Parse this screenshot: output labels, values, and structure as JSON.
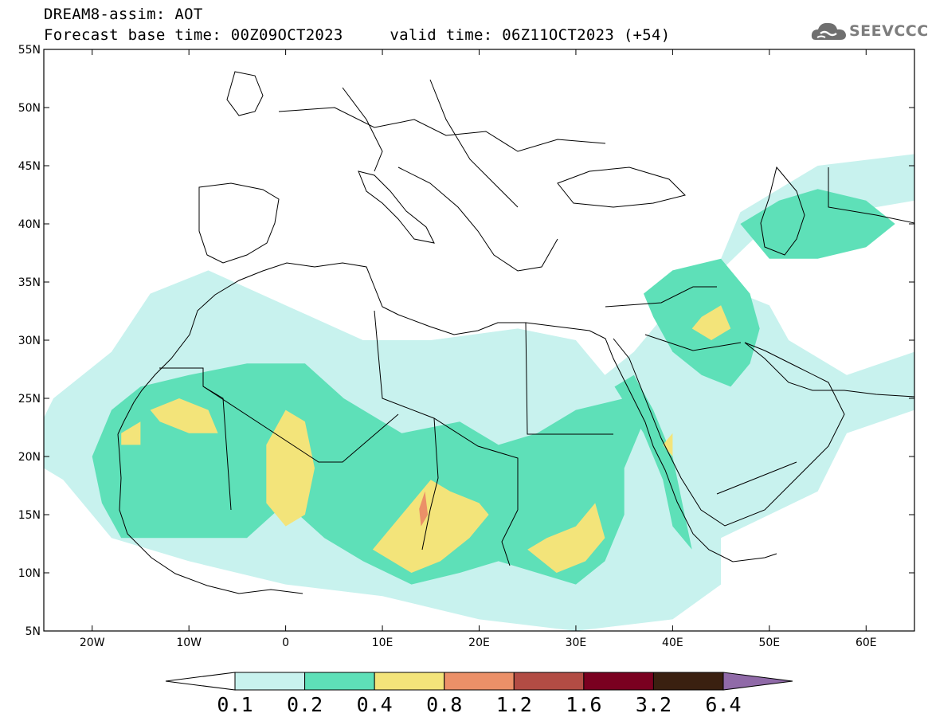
{
  "header": {
    "title_line1": "DREAM8-assim: AOT",
    "title_line2": "Forecast base time: 00Z09OCT2023     valid time: 06Z11OCT2023 (+54)",
    "logo_text": "SEEVCCC",
    "logo_icon": "cloud-logo-icon"
  },
  "map": {
    "lon_range": [
      -25,
      65
    ],
    "lat_range": [
      5,
      55
    ],
    "x_tick_labels": [
      "20W",
      "10W",
      "0",
      "10E",
      "20E",
      "30E",
      "40E",
      "50E",
      "60E"
    ],
    "x_tick_values": [
      -20,
      -10,
      0,
      10,
      20,
      30,
      40,
      50,
      60
    ],
    "y_tick_labels": [
      "5N",
      "10N",
      "15N",
      "20N",
      "25N",
      "30N",
      "35N",
      "40N",
      "45N",
      "50N",
      "55N"
    ],
    "y_tick_values": [
      5,
      10,
      15,
      20,
      25,
      30,
      35,
      40,
      45,
      50,
      55
    ],
    "regions": [
      {
        "name": "western-sahara-band",
        "level": 0.1,
        "lonlat": [
          [
            -27,
            20
          ],
          [
            -23,
            18
          ],
          [
            -18,
            13
          ],
          [
            -10,
            11
          ],
          [
            0,
            9
          ],
          [
            10,
            8
          ],
          [
            20,
            6
          ],
          [
            30,
            5
          ],
          [
            40,
            6
          ],
          [
            45,
            9
          ],
          [
            45,
            13
          ],
          [
            55,
            17
          ],
          [
            58,
            22
          ],
          [
            65,
            24
          ],
          [
            65,
            29
          ],
          [
            58,
            27
          ],
          [
            52,
            30
          ],
          [
            50,
            33
          ],
          [
            47,
            34
          ],
          [
            45,
            37
          ],
          [
            47,
            41
          ],
          [
            55,
            45
          ],
          [
            65,
            46
          ],
          [
            65,
            42
          ],
          [
            58,
            41
          ],
          [
            50,
            40
          ],
          [
            45,
            36
          ],
          [
            40,
            33
          ],
          [
            36,
            29
          ],
          [
            33,
            27
          ],
          [
            30,
            30
          ],
          [
            24,
            31
          ],
          [
            15,
            30
          ],
          [
            8,
            30
          ],
          [
            0,
            33
          ],
          [
            -8,
            36
          ],
          [
            -14,
            34
          ],
          [
            -18,
            29
          ],
          [
            -24,
            25
          ]
        ]
      },
      {
        "name": "sahara-core-moderate",
        "level": 0.2,
        "lonlat": [
          [
            -19,
            16
          ],
          [
            -17,
            13
          ],
          [
            -10,
            13
          ],
          [
            -4,
            13
          ],
          [
            0,
            16
          ],
          [
            4,
            13
          ],
          [
            8,
            11
          ],
          [
            13,
            9
          ],
          [
            18,
            10
          ],
          [
            22,
            11
          ],
          [
            26,
            10
          ],
          [
            30,
            9
          ],
          [
            33,
            11
          ],
          [
            35,
            15
          ],
          [
            35,
            19
          ],
          [
            37,
            23
          ],
          [
            35,
            25
          ],
          [
            30,
            24
          ],
          [
            26,
            22
          ],
          [
            22,
            21
          ],
          [
            18,
            23
          ],
          [
            12,
            22
          ],
          [
            6,
            25
          ],
          [
            2,
            28
          ],
          [
            -4,
            28
          ],
          [
            -10,
            27
          ],
          [
            -15,
            26
          ],
          [
            -18,
            24
          ],
          [
            -20,
            20
          ]
        ]
      },
      {
        "name": "middle-east-moderate",
        "level": 0.2,
        "lonlat": [
          [
            38,
            32
          ],
          [
            40,
            29
          ],
          [
            43,
            27
          ],
          [
            46,
            26
          ],
          [
            48,
            28
          ],
          [
            49,
            31
          ],
          [
            48,
            34
          ],
          [
            45,
            37
          ],
          [
            40,
            36
          ],
          [
            37,
            34
          ]
        ]
      },
      {
        "name": "caspian-moderate",
        "level": 0.2,
        "lonlat": [
          [
            47,
            40
          ],
          [
            50,
            37
          ],
          [
            55,
            37
          ],
          [
            60,
            38
          ],
          [
            63,
            40
          ],
          [
            60,
            42
          ],
          [
            55,
            43
          ],
          [
            51,
            42
          ]
        ]
      },
      {
        "name": "red-sea-moderate",
        "level": 0.2,
        "lonlat": [
          [
            34,
            26
          ],
          [
            37,
            22
          ],
          [
            39,
            18
          ],
          [
            40,
            14
          ],
          [
            42,
            12
          ],
          [
            41,
            16
          ],
          [
            40,
            20
          ],
          [
            38,
            24
          ],
          [
            36,
            27
          ]
        ]
      },
      {
        "name": "mauritania-high",
        "level": 0.4,
        "lonlat": [
          [
            -14,
            24
          ],
          [
            -11,
            25
          ],
          [
            -8,
            24
          ],
          [
            -7,
            22
          ],
          [
            -10,
            22
          ],
          [
            -13,
            23
          ]
        ]
      },
      {
        "name": "mali-high",
        "level": 0.4,
        "lonlat": [
          [
            -2,
            16
          ],
          [
            0,
            14
          ],
          [
            2,
            15
          ],
          [
            3,
            19
          ],
          [
            2,
            23
          ],
          [
            0,
            24
          ],
          [
            -2,
            21
          ]
        ]
      },
      {
        "name": "chad-high",
        "level": 0.4,
        "lonlat": [
          [
            9,
            12
          ],
          [
            13,
            10
          ],
          [
            16,
            11
          ],
          [
            19,
            13
          ],
          [
            21,
            15
          ],
          [
            20,
            16
          ],
          [
            17,
            17
          ],
          [
            15,
            18
          ],
          [
            13,
            16
          ]
        ]
      },
      {
        "name": "sudan-high",
        "level": 0.4,
        "lonlat": [
          [
            25,
            12
          ],
          [
            28,
            10
          ],
          [
            31,
            11
          ],
          [
            33,
            13
          ],
          [
            32,
            16
          ],
          [
            30,
            14
          ],
          [
            27,
            13
          ]
        ]
      },
      {
        "name": "iraq-high",
        "level": 0.4,
        "lonlat": [
          [
            42,
            31
          ],
          [
            44,
            30
          ],
          [
            46,
            31
          ],
          [
            45,
            33
          ],
          [
            43,
            32
          ]
        ]
      },
      {
        "name": "red-sea-spot-high",
        "level": 0.4,
        "lonlat": [
          [
            39,
            21
          ],
          [
            40,
            20
          ],
          [
            40,
            22
          ]
        ]
      },
      {
        "name": "coast-spot-high",
        "level": 0.4,
        "lonlat": [
          [
            -17,
            21
          ],
          [
            -15,
            21
          ],
          [
            -15,
            23
          ],
          [
            -17,
            22
          ]
        ]
      },
      {
        "name": "chad-peak",
        "level": 0.8,
        "lonlat": [
          [
            14,
            14
          ],
          [
            14.7,
            15
          ],
          [
            14.4,
            17
          ],
          [
            13.8,
            15.5
          ]
        ]
      }
    ]
  },
  "colorbar": {
    "colors": [
      "#ffffff",
      "#c8f2ee",
      "#5ee0b8",
      "#f3e47a",
      "#eb9068",
      "#b24c44",
      "#7a0020",
      "#3a2010",
      "#906aa8"
    ],
    "labels": [
      "0.1",
      "0.2",
      "0.4",
      "0.8",
      "1.2",
      "1.6",
      "3.2",
      "6.4"
    ]
  }
}
